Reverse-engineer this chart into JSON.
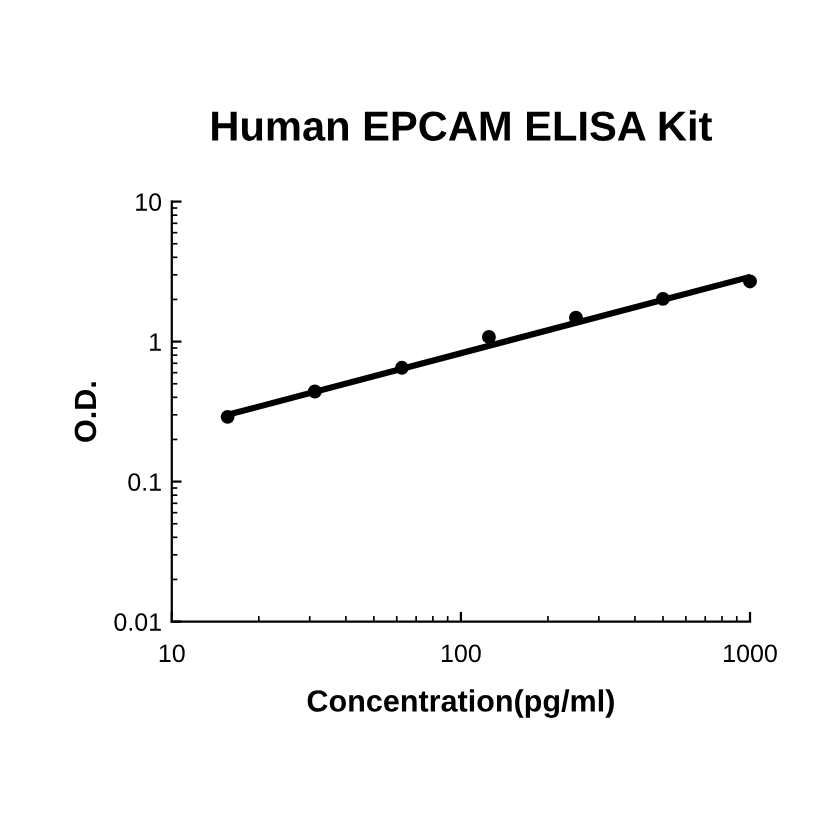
{
  "chart_data": {
    "type": "scatter",
    "title": "Human EPCAM ELISA Kit",
    "xlabel": "Concentration(pg/ml)",
    "ylabel": "O.D.",
    "log": "xy",
    "xlim": [
      10,
      1000
    ],
    "ylim": [
      0.01,
      10
    ],
    "xticks": [
      10,
      100,
      1000
    ],
    "yticks": [
      0.01,
      0.1,
      1,
      10
    ],
    "grid": false,
    "series": [
      {
        "color": "#000000",
        "marker": "circle",
        "x": [
          15.6,
          31.25,
          62.5,
          125,
          250,
          500,
          1000
        ],
        "values": [
          0.29,
          0.44,
          0.65,
          1.08,
          1.48,
          2.02,
          2.69
        ]
      },
      {
        "type": "line",
        "color": "#000000",
        "x": [
          15.6,
          1000
        ],
        "values": [
          0.3,
          2.9
        ],
        "line_style": "solid"
      }
    ]
  }
}
